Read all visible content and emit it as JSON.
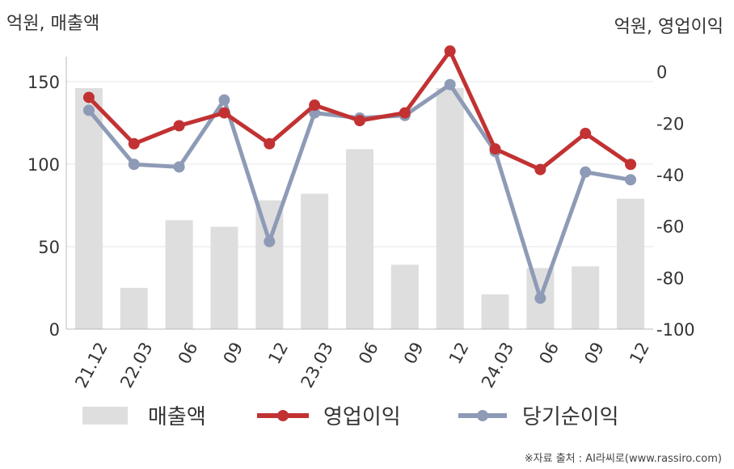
{
  "chart_data": {
    "type": "bar+line",
    "categories": [
      "21.12",
      "22.03",
      "06",
      "09",
      "12",
      "23.03",
      "06",
      "09",
      "12",
      "24.03",
      "06",
      "09",
      "12"
    ],
    "left_axis": {
      "label": "억원, 매출액",
      "ylim": [
        0,
        170
      ],
      "ticks": [
        "0",
        "50",
        "100",
        "150"
      ],
      "tick_values": [
        0,
        50,
        100,
        150
      ]
    },
    "right_axis": {
      "label": "억원, 영업이익",
      "ylim": [
        -100,
        9
      ],
      "ticks": [
        "0",
        "-20",
        "-40",
        "-60",
        "-80",
        "-100"
      ],
      "tick_values": [
        0,
        -20,
        -40,
        -60,
        -80,
        -100
      ]
    },
    "series": [
      {
        "name": "매출액",
        "type": "bar",
        "axis": "left",
        "color": "#dedede",
        "values": [
          146,
          25,
          66,
          62,
          78,
          82,
          109,
          39,
          146,
          21,
          37,
          38,
          79
        ]
      },
      {
        "name": "영업이익",
        "type": "line",
        "axis": "right",
        "color": "#c23233",
        "values": [
          -10,
          -28,
          -21,
          -16,
          -28,
          -13,
          -19,
          -16,
          8,
          -30,
          -38,
          -24,
          -36
        ]
      },
      {
        "name": "당기순이익",
        "type": "line",
        "axis": "right",
        "color": "#8e9bb6",
        "values": [
          -15,
          -36,
          -37,
          -11,
          -66,
          -16,
          -18,
          -17,
          -5,
          -31,
          -88,
          -39,
          -42
        ]
      }
    ],
    "grid": true,
    "legend_position": "bottom"
  },
  "source": "※자료 출처 : AI라씨로(www.rassiro.com)"
}
